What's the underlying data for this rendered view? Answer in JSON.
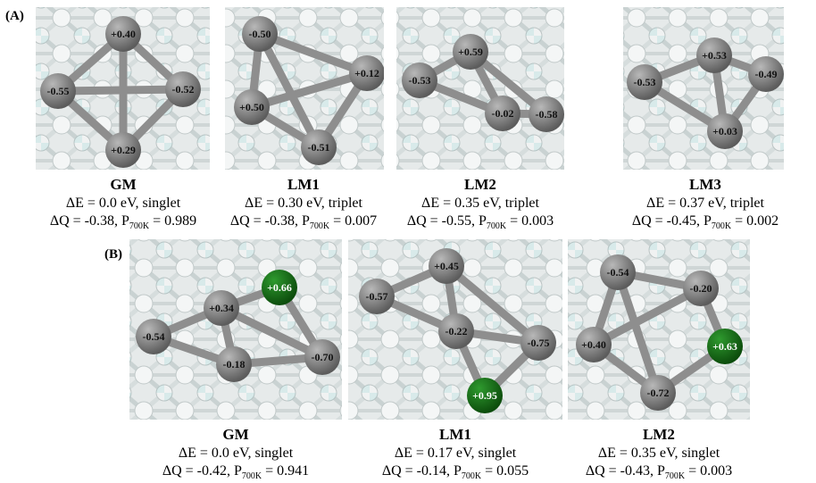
{
  "panel_labels": [
    "(A)",
    "(B)"
  ],
  "rows": [
    {
      "structures": [
        {
          "atoms": [
            "+0.40",
            "-0.55",
            "-0.52",
            "+0.29"
          ],
          "name": "GM",
          "energy": "ΔE = 0.0 eV, singlet",
          "charge": "ΔQ = -0.38, P",
          "subscript": "700K",
          "probability": "= 0.989"
        },
        {
          "atoms": [
            "-0.50",
            "+0.12",
            "+0.50",
            "-0.51"
          ],
          "name": "LM1",
          "energy": "ΔE = 0.30 eV, triplet",
          "charge": "ΔQ = -0.38, P",
          "subscript": "700K",
          "probability": "= 0.007"
        },
        {
          "atoms": [
            "+0.59",
            "-0.53",
            "-0.02",
            "-0.58"
          ],
          "name": "LM2",
          "energy": "ΔE = 0.35 eV, triplet",
          "charge": "ΔQ = -0.55, P",
          "subscript": "700K",
          "probability": "= 0.003"
        },
        {
          "atoms": [
            "+0.53",
            "-0.53",
            "-0.49",
            "+0.03"
          ],
          "name": "LM3",
          "energy": "ΔE = 0.37 eV, triplet",
          "charge": "ΔQ = -0.45, P",
          "subscript": "700K",
          "probability": "=  0.002"
        }
      ]
    },
    {
      "structures": [
        {
          "atoms": [
            "+0.34",
            "+0.66",
            "-0.54",
            "-0.18",
            "-0.70"
          ],
          "name": "GM",
          "energy": "ΔE = 0.0 eV, singlet",
          "charge": "ΔQ = -0.42, P",
          "subscript": "700K",
          "probability": "= 0.941"
        },
        {
          "atoms": [
            "+0.45",
            "-0.57",
            "-0.22",
            "-0.75",
            "+0.95"
          ],
          "name": "LM1",
          "energy": "ΔE = 0.17 eV, singlet",
          "charge": "ΔQ = -0.14, P",
          "subscript": "700K",
          "probability": "= 0.055"
        },
        {
          "atoms": [
            "-0.54",
            "-0.20",
            "+0.40",
            "+0.63",
            "-0.72"
          ],
          "name": "LM2",
          "energy": "ΔE = 0.35 eV, singlet",
          "charge": "ΔQ = -0.43, P",
          "subscript": "700K",
          "probability": "= 0.003"
        }
      ]
    }
  ]
}
